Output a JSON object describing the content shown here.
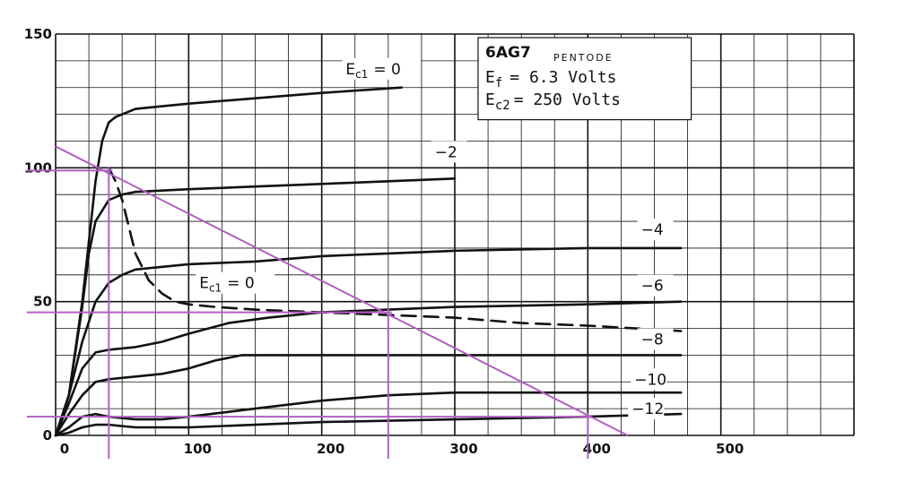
{
  "chart_data": {
    "type": "line",
    "title": "",
    "xlabel": "",
    "ylabel": "",
    "xlim": [
      0,
      600
    ],
    "ylim": [
      0,
      150
    ],
    "grid": true,
    "x_ticks": [
      "0",
      "100",
      "200",
      "300",
      "400",
      "500"
    ],
    "x_tick_values": [
      0,
      100,
      200,
      300,
      400,
      500
    ],
    "y_ticks": [
      "0",
      "50",
      "100",
      "150"
    ],
    "y_tick_values": [
      0,
      50,
      100,
      150
    ],
    "info_box": {
      "tube": "6AG7",
      "type": "PENTODE",
      "ef_line": {
        "sym": "E",
        "sub": "f",
        "rest": "= 6.3 Volts"
      },
      "ec2_line": {
        "sym": "E",
        "sub": "c2",
        "rest": "= 250 Volts"
      }
    },
    "series": [
      {
        "name": "E",
        "name_sub": "c1",
        "name_rest": "= 0",
        "label_at": [
          218,
          135
        ],
        "x": [
          0,
          10,
          20,
          30,
          35,
          40,
          45,
          50,
          60,
          80,
          100,
          150,
          200,
          260
        ],
        "y": [
          0,
          15,
          50,
          95,
          110,
          117,
          119,
          120,
          122,
          123,
          124,
          126,
          128,
          130
        ]
      },
      {
        "name": "−2",
        "label_at": [
          285,
          104
        ],
        "x": [
          0,
          10,
          20,
          25,
          30,
          40,
          50,
          60,
          100,
          150,
          200,
          250,
          300
        ],
        "y": [
          0,
          15,
          48,
          68,
          80,
          88,
          90,
          91,
          92,
          93,
          94,
          95,
          96
        ]
      },
      {
        "name": "−4",
        "label_at": [
          440,
          75
        ],
        "x": [
          0,
          10,
          20,
          30,
          40,
          50,
          60,
          100,
          150,
          200,
          250,
          300,
          400,
          470
        ],
        "y": [
          0,
          15,
          35,
          50,
          57,
          60,
          62,
          64,
          65,
          67,
          68,
          69,
          70,
          70
        ]
      },
      {
        "name": "−6",
        "label_at": [
          440,
          54
        ],
        "x": [
          0,
          10,
          20,
          30,
          40,
          60,
          80,
          100,
          130,
          160,
          200,
          250,
          300,
          400,
          470
        ],
        "y": [
          0,
          12,
          25,
          31,
          32,
          33,
          35,
          38,
          42,
          44,
          46,
          47,
          48,
          49,
          50
        ]
      },
      {
        "name": "−8",
        "label_at": [
          440,
          34
        ],
        "x": [
          0,
          10,
          20,
          30,
          40,
          60,
          80,
          100,
          120,
          140,
          160,
          200,
          300,
          400,
          470
        ],
        "y": [
          0,
          8,
          15,
          20,
          21,
          22,
          23,
          25,
          28,
          30,
          30,
          30,
          30,
          30,
          30
        ]
      },
      {
        "name": "−10",
        "label_at": [
          435,
          19
        ],
        "x": [
          0,
          10,
          20,
          30,
          40,
          60,
          80,
          100,
          150,
          200,
          250,
          300,
          400,
          470
        ],
        "y": [
          0,
          3,
          7,
          8,
          7,
          6,
          6,
          7,
          10,
          13,
          15,
          16,
          16,
          16
        ]
      },
      {
        "name": "−12",
        "label_at": [
          433,
          8
        ],
        "x": [
          0,
          10,
          20,
          30,
          40,
          60,
          80,
          100,
          150,
          200,
          300,
          400,
          470
        ],
        "y": [
          0,
          1,
          3,
          4,
          4,
          3,
          3,
          3,
          4,
          5,
          6,
          7,
          8
        ]
      },
      {
        "name": "E",
        "name_sub": "c1",
        "name_rest": "= 0",
        "label_at": [
          108,
          55
        ],
        "dashed": true,
        "x": [
          40,
          45,
          50,
          55,
          60,
          70,
          80,
          90,
          100,
          120,
          150,
          200,
          250,
          300,
          350,
          400,
          470
        ],
        "y": [
          100,
          95,
          88,
          78,
          68,
          58,
          53,
          50,
          49,
          48,
          47,
          46,
          45,
          44,
          42,
          41,
          39
        ]
      }
    ],
    "load_line": {
      "x": [
        0,
        430
      ],
      "y": [
        108,
        0
      ]
    },
    "operating_points": {
      "x": [
        40,
        250,
        400
      ],
      "y": [
        99,
        46,
        7
      ]
    }
  }
}
